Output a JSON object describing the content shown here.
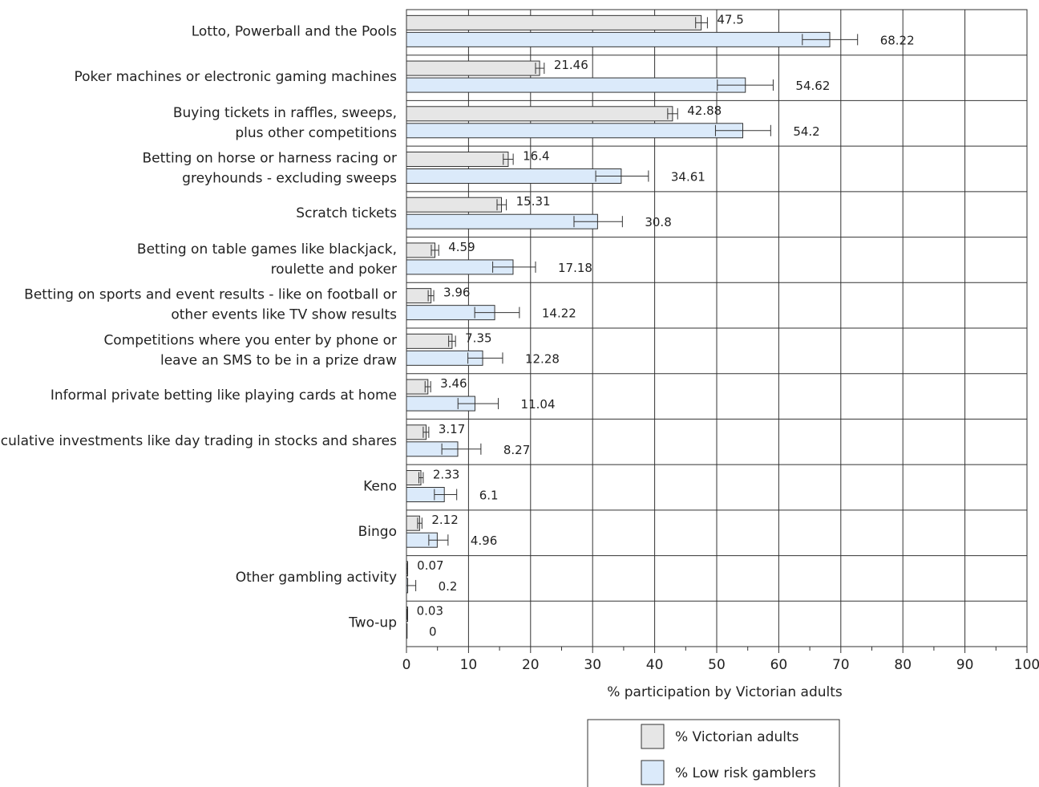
{
  "chart_data": {
    "type": "bar",
    "orientation": "horizontal",
    "categories": [
      [
        "Lotto, Powerball and the Pools"
      ],
      [
        "Poker machines or electronic gaming machines"
      ],
      [
        "Buying tickets in raffles, sweeps,",
        "plus other competitions"
      ],
      [
        "Betting on horse or harness racing or",
        "greyhounds - excluding sweeps"
      ],
      [
        "Scratch tickets"
      ],
      [
        "Betting on table games like blackjack,",
        "roulette and poker"
      ],
      [
        "Betting on sports and event results - like on football or",
        "other events like TV show results"
      ],
      [
        "Competitions where you enter by phone or",
        "leave an SMS to be in a prize draw"
      ],
      [
        "Informal private betting like playing cards at home"
      ],
      [
        "Speculative investments like day trading in stocks and shares"
      ],
      [
        "Keno"
      ],
      [
        "Bingo"
      ],
      [
        "Other gambling activity"
      ],
      [
        "Two-up"
      ]
    ],
    "series": [
      {
        "name": "% Victorian adults",
        "color": "#e6e6e6",
        "values": [
          47.5,
          21.46,
          42.88,
          16.4,
          15.31,
          4.59,
          3.96,
          7.35,
          3.46,
          3.17,
          2.33,
          2.12,
          0.07,
          0.03
        ],
        "labels": [
          "47.5",
          "21.46",
          "42.88",
          "16.4",
          "15.31",
          "4.59",
          "3.96",
          "7.35",
          "3.46",
          "3.17",
          "2.33",
          "2.12",
          "0.07",
          "0.03"
        ],
        "err_low": [
          46.6,
          20.8,
          42.1,
          15.6,
          14.6,
          4.0,
          3.5,
          6.8,
          3.0,
          2.7,
          2.0,
          1.8,
          0.0,
          0.0
        ],
        "err_high": [
          48.5,
          22.2,
          43.7,
          17.2,
          16.1,
          5.2,
          4.4,
          7.9,
          3.9,
          3.6,
          2.7,
          2.5,
          0.15,
          0.08
        ]
      },
      {
        "name": "% Low risk gamblers",
        "color": "#dbeafa",
        "values": [
          68.22,
          54.62,
          54.2,
          34.61,
          30.8,
          17.18,
          14.22,
          12.28,
          11.04,
          8.27,
          6.1,
          4.96,
          0.2,
          0
        ],
        "labels": [
          "68.22",
          "54.62",
          "54.2",
          "34.61",
          "30.8",
          "17.18",
          "14.22",
          "12.28",
          "11.04",
          "8.27",
          "6.1",
          "4.96",
          "0.2",
          "0"
        ],
        "err_low": [
          63.8,
          50.1,
          49.8,
          30.5,
          27.0,
          13.9,
          11.0,
          9.9,
          8.3,
          5.7,
          4.5,
          3.6,
          0.0,
          0.0
        ],
        "err_high": [
          72.7,
          59.1,
          58.7,
          39.0,
          34.8,
          20.8,
          18.2,
          15.5,
          14.8,
          12.0,
          8.1,
          6.7,
          1.5,
          0.0
        ]
      }
    ],
    "xlabel": "% participation by Victorian adults",
    "xlim": [
      0,
      100
    ],
    "xticks": [
      0,
      10,
      20,
      30,
      40,
      50,
      60,
      70,
      80,
      90,
      100
    ],
    "grid": true,
    "error_bars": true,
    "legend_position": "bottom"
  }
}
